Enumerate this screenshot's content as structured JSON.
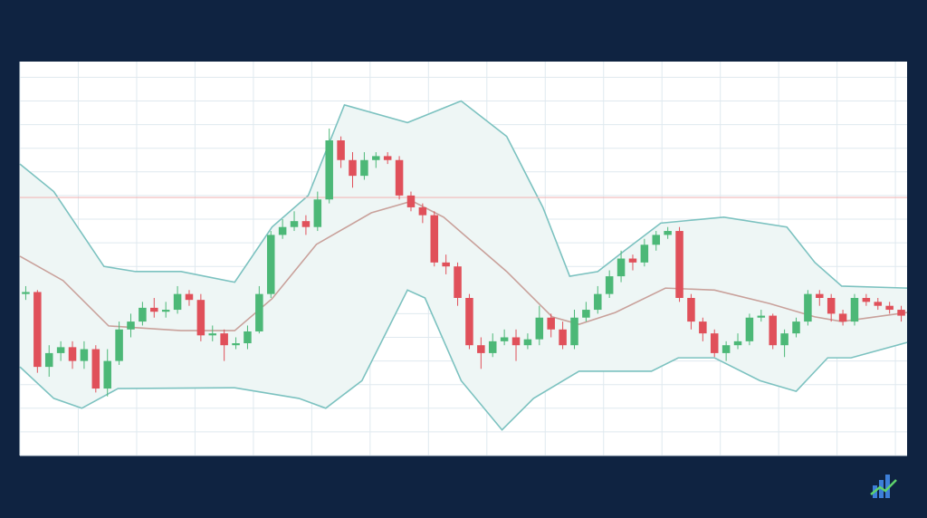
{
  "chart_data": {
    "type": "candlestick",
    "open": [
      41,
      41.5,
      22.5,
      26,
      27.5,
      24,
      27,
      17,
      24,
      32,
      34,
      37.5,
      36.5,
      37,
      41,
      39.5,
      30.5,
      31,
      28,
      28.5,
      31.5,
      41,
      56,
      58,
      59.5,
      58,
      65,
      80,
      75,
      71,
      75,
      76,
      75,
      66,
      63,
      61,
      49,
      48,
      40,
      28,
      26,
      29,
      30,
      28,
      29.5,
      35,
      32,
      28,
      35,
      37,
      41,
      45.5,
      50,
      49,
      53.5,
      56,
      57,
      40,
      34,
      31,
      26,
      28,
      29,
      35,
      35.5,
      28,
      31,
      34,
      41,
      40,
      36,
      34,
      40,
      39,
      38,
      37
    ],
    "high": [
      43,
      42,
      28,
      29,
      29,
      29,
      28,
      27,
      34,
      36,
      39,
      40,
      39,
      43,
      42,
      41,
      33,
      32,
      30,
      33,
      43,
      57,
      60,
      62,
      61,
      67,
      83,
      81,
      77,
      77,
      77,
      77,
      76,
      67,
      64,
      62,
      51,
      49,
      41,
      30,
      31,
      32,
      32,
      31,
      38,
      36,
      34,
      37,
      39,
      43,
      47,
      52,
      51,
      55,
      57,
      58,
      58,
      41,
      35,
      32,
      29,
      31,
      36,
      37,
      36,
      32,
      35,
      42,
      42,
      41,
      37,
      41,
      41,
      40,
      39,
      38
    ],
    "low": [
      39.5,
      21,
      20,
      24,
      22,
      22,
      16,
      15,
      23,
      30,
      33,
      35,
      35,
      36,
      38,
      29,
      29,
      24,
      27,
      27,
      31,
      40,
      55,
      57,
      56,
      57,
      64,
      73,
      68,
      70,
      73,
      74,
      65,
      62,
      59,
      48,
      46,
      38,
      27,
      22,
      25,
      28,
      24,
      27,
      28,
      30,
      27,
      27,
      34,
      36,
      40,
      44,
      47,
      48,
      52,
      55,
      39,
      32,
      29,
      25,
      24,
      27,
      28,
      34,
      27,
      25,
      30,
      33,
      38,
      34,
      33,
      33,
      38,
      37,
      36,
      34
    ],
    "close": [
      41.5,
      22.5,
      26,
      27.5,
      24,
      27,
      17,
      24,
      32,
      34,
      37.5,
      36.5,
      37,
      41,
      39.5,
      30.5,
      31,
      28,
      28.5,
      31.5,
      41,
      56,
      58,
      59.5,
      58,
      65,
      80,
      75,
      71,
      75,
      76,
      75,
      66,
      63,
      61,
      49,
      48,
      40,
      28,
      26,
      29,
      30,
      28,
      29.5,
      35,
      32,
      28,
      35,
      37,
      41,
      45.5,
      50,
      49,
      53.5,
      56,
      57,
      40,
      34,
      31,
      26,
      28,
      29,
      35,
      35.5,
      28,
      31,
      34,
      41,
      40,
      36,
      34,
      40,
      39,
      38,
      37,
      35.5
    ],
    "up_color": "#4cb877",
    "down_color": "#e0505a",
    "bands": {
      "upper": {
        "color": "#7cc2c0",
        "x": [
          0,
          2.9,
          7.2,
          9.9,
          13.8,
          18.4,
          21.6,
          24.7,
          27.8,
          33.2,
          37.8,
          41.7,
          44.8,
          47.1,
          49.5,
          51.8,
          54.9,
          60.3,
          65.7,
          68.1,
          70.4,
          76
        ],
        "values": [
          74,
          67,
          48,
          46.7,
          46.7,
          44,
          58,
          66,
          89,
          84.5,
          90,
          81,
          63,
          45.5,
          46.7,
          52,
          59,
          60.5,
          58,
          49,
          43,
          42.5
        ]
      },
      "middle": {
        "color": "#c9a19b",
        "x": [
          0,
          3.7,
          7.6,
          13.8,
          18.4,
          21.6,
          25.4,
          30.1,
          33.6,
          36.3,
          41.7,
          45.6,
          47.9,
          51,
          55.3,
          59.5,
          64.2,
          68.1,
          70.4,
          76
        ],
        "values": [
          50.6,
          44.4,
          32.9,
          31.7,
          31.7,
          39.8,
          53.6,
          61.6,
          64.6,
          60.5,
          46.7,
          35.2,
          33.3,
          36.3,
          42.5,
          42,
          38.6,
          35.2,
          34,
          36.3
        ]
      },
      "lower": {
        "color": "#7cc2c0",
        "x": [
          0,
          2.9,
          5.3,
          8.4,
          18.4,
          23.9,
          26.2,
          29.3,
          33.2,
          34.7,
          37.8,
          41.3,
          44,
          47.9,
          54.1,
          56.4,
          59.5,
          63.4,
          66.5,
          69.2,
          71.2,
          76
        ],
        "values": [
          22.5,
          14.5,
          12,
          17,
          17.2,
          14.5,
          12,
          19,
          42,
          40,
          19,
          6.5,
          14.5,
          21.4,
          21.4,
          24.8,
          24.8,
          19,
          16.3,
          24.8,
          24.8,
          28.7
        ]
      },
      "fill": "#eef6f5"
    },
    "hline": {
      "value": 65.5,
      "color": "#f2b9b9"
    },
    "xlim": [
      0,
      76
    ],
    "xticks": [
      0,
      5,
      10,
      15,
      20,
      25,
      30,
      35,
      40,
      45,
      50,
      55,
      60,
      65,
      70,
      75
    ],
    "ylim": [
      0,
      100
    ],
    "yticks": [
      0,
      6,
      12,
      18,
      24,
      30,
      36,
      42,
      48,
      54,
      60,
      66,
      72,
      78,
      84,
      90,
      96
    ],
    "grid": true
  }
}
